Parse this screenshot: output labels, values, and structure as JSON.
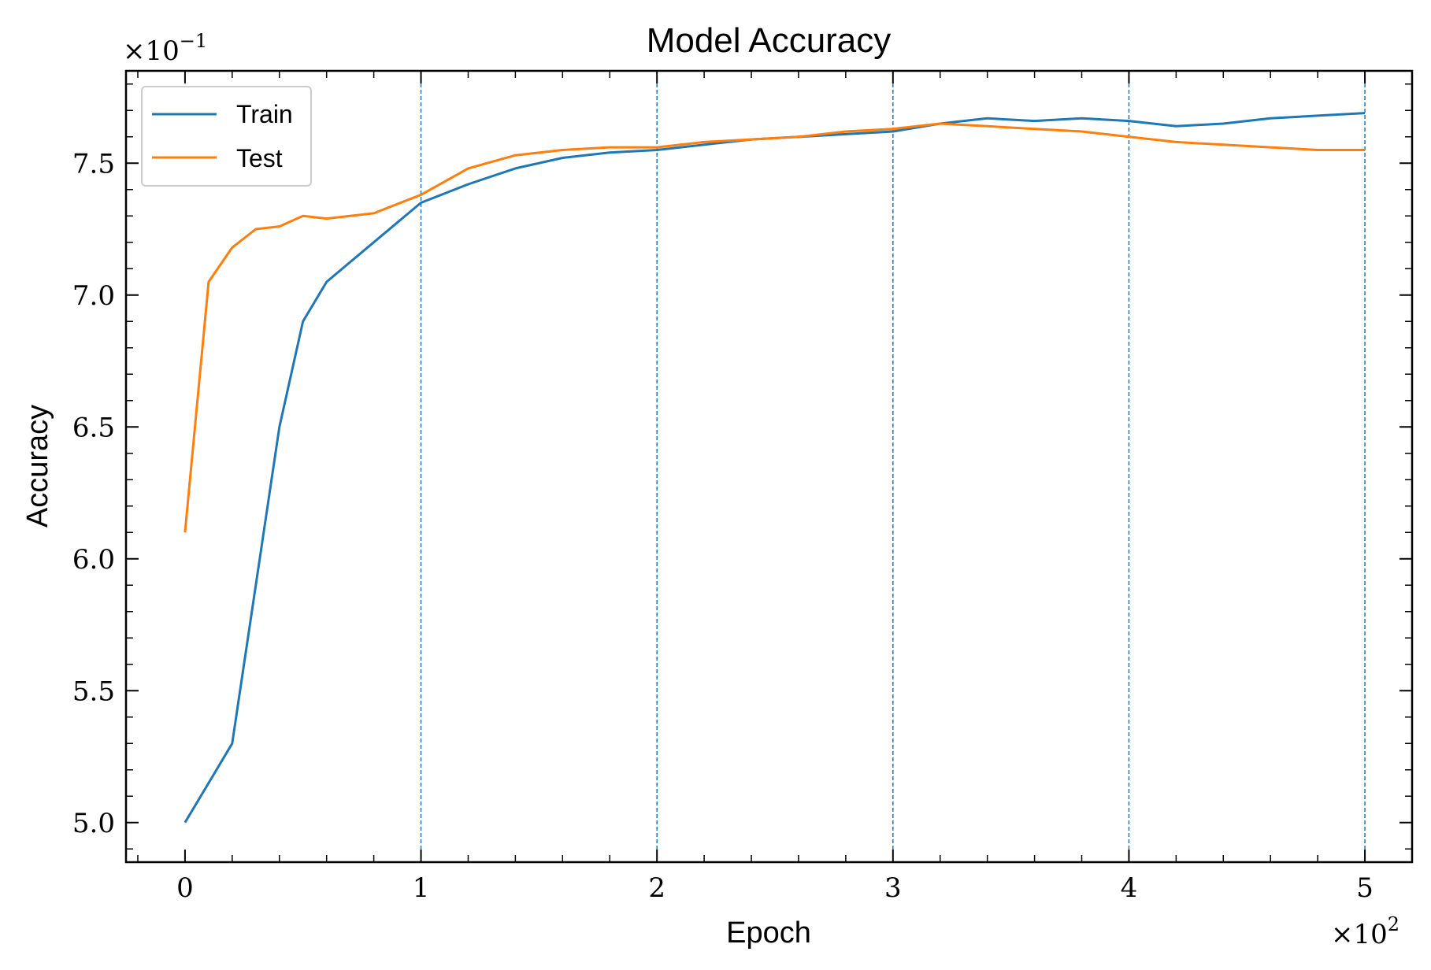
{
  "chart_data": {
    "type": "line",
    "title": "Model Accuracy",
    "xlabel": "Epoch",
    "ylabel": "Accuracy",
    "x_multiplier": "×10",
    "x_multiplier_exp": "2",
    "y_multiplier": "×10",
    "y_multiplier_exp": "−1",
    "xlim": [
      -0.25,
      5.2
    ],
    "ylim": [
      4.85,
      7.85
    ],
    "x_ticks": [
      0,
      1,
      2,
      3,
      4,
      5
    ],
    "x_tick_labels": [
      "0",
      "1",
      "2",
      "3",
      "4",
      "5"
    ],
    "y_ticks": [
      5.0,
      5.5,
      6.0,
      6.5,
      7.0,
      7.5
    ],
    "y_tick_labels": [
      "5.0",
      "5.5",
      "6.0",
      "6.5",
      "7.0",
      "7.5"
    ],
    "vertical_lines_at": [
      1,
      2,
      3,
      4,
      5
    ],
    "legend_position": "top-left",
    "grid": false,
    "x": [
      0,
      0.1,
      0.2,
      0.3,
      0.4,
      0.5,
      0.6,
      0.8,
      1.0,
      1.2,
      1.4,
      1.6,
      1.8,
      2.0,
      2.2,
      2.4,
      2.6,
      2.8,
      3.0,
      3.2,
      3.4,
      3.6,
      3.8,
      4.0,
      4.2,
      4.4,
      4.6,
      4.8,
      5.0
    ],
    "series": [
      {
        "name": "Train",
        "color": "#1f77b4",
        "values": [
          5.0,
          5.15,
          5.3,
          5.9,
          6.5,
          6.9,
          7.05,
          7.2,
          7.35,
          7.42,
          7.48,
          7.52,
          7.54,
          7.55,
          7.57,
          7.59,
          7.6,
          7.61,
          7.62,
          7.65,
          7.67,
          7.66,
          7.67,
          7.66,
          7.64,
          7.65,
          7.67,
          7.68,
          7.69
        ]
      },
      {
        "name": "Test",
        "color": "#ff7f0e",
        "values": [
          6.1,
          7.05,
          7.18,
          7.25,
          7.26,
          7.3,
          7.29,
          7.31,
          7.38,
          7.48,
          7.53,
          7.55,
          7.56,
          7.56,
          7.58,
          7.59,
          7.6,
          7.62,
          7.63,
          7.65,
          7.64,
          7.63,
          7.62,
          7.6,
          7.58,
          7.57,
          7.56,
          7.55,
          7.55
        ]
      }
    ]
  },
  "colors": {
    "vertical_line": "#1f77b4",
    "axis": "#000000"
  }
}
